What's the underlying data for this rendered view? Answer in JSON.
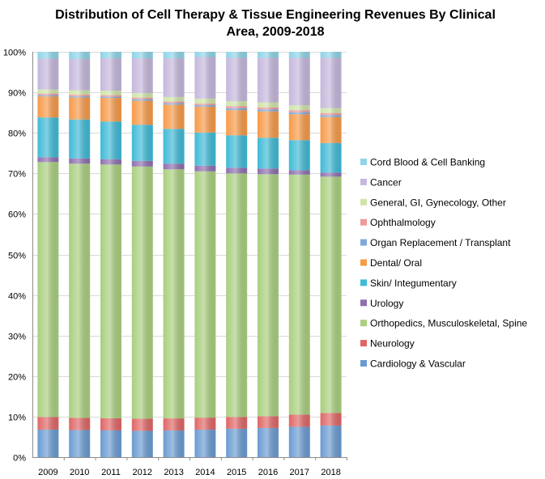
{
  "chart_data": {
    "type": "bar",
    "stacked": "percent",
    "title": "Distribution of Cell Therapy & Tissue Engineering Revenues By Clinical\nArea, 2009-2018",
    "xlabel": "",
    "ylabel": "",
    "ylim": [
      0,
      100
    ],
    "y_ticks": [
      "0%",
      "10%",
      "20%",
      "30%",
      "40%",
      "50%",
      "60%",
      "70%",
      "80%",
      "90%",
      "100%"
    ],
    "grid": true,
    "legend_position": "right",
    "categories": [
      "2009",
      "2010",
      "2011",
      "2012",
      "2013",
      "2014",
      "2015",
      "2016",
      "2017",
      "2018"
    ],
    "series": [
      {
        "name": "Cardiology & Vascular",
        "color": "#6a9bd2",
        "values": [
          6.8,
          6.7,
          6.6,
          6.5,
          6.6,
          6.8,
          7.0,
          7.2,
          7.5,
          7.8
        ]
      },
      {
        "name": "Neurology",
        "color": "#e06666",
        "values": [
          3.1,
          3.0,
          3.0,
          3.0,
          3.0,
          3.0,
          2.9,
          2.9,
          3.0,
          3.1
        ]
      },
      {
        "name": "Orthopedics, Musculoskeletal, Spine",
        "color": "#a9cf7e",
        "values": [
          62.9,
          62.7,
          62.6,
          62.2,
          61.7,
          61.0,
          60.1,
          59.7,
          59.2,
          58.3
        ]
      },
      {
        "name": "Urology",
        "color": "#8e6fb0",
        "values": [
          1.2,
          1.3,
          1.3,
          1.4,
          1.4,
          1.4,
          1.4,
          1.4,
          1.1,
          1.0
        ]
      },
      {
        "name": "Skin/ Integumentary",
        "color": "#3fbad6",
        "values": [
          9.8,
          9.6,
          9.3,
          8.9,
          8.6,
          8.2,
          8.0,
          7.6,
          7.4,
          7.3
        ]
      },
      {
        "name": "Dental/ Oral",
        "color": "#f79a48",
        "values": [
          5.2,
          5.4,
          5.8,
          5.9,
          6.0,
          6.4,
          6.2,
          6.5,
          6.4,
          6.4
        ]
      },
      {
        "name": "Organ Replacement / Transplant",
        "color": "#7fa9d9",
        "values": [
          0.3,
          0.3,
          0.3,
          0.4,
          0.4,
          0.4,
          0.5,
          0.5,
          0.5,
          0.5
        ]
      },
      {
        "name": "Ophthalmology",
        "color": "#ef9a9a",
        "values": [
          0.4,
          0.4,
          0.4,
          0.4,
          0.4,
          0.4,
          0.5,
          0.5,
          0.5,
          0.5
        ]
      },
      {
        "name": "General, GI, Gynecology, Other",
        "color": "#cfe5a8",
        "values": [
          1.0,
          1.1,
          1.1,
          1.1,
          1.1,
          1.2,
          1.2,
          1.2,
          1.2,
          1.2
        ]
      },
      {
        "name": "Cancer",
        "color": "#c5b8dc",
        "values": [
          7.6,
          7.7,
          8.0,
          8.6,
          9.6,
          10.3,
          10.7,
          11.0,
          11.7,
          12.4
        ]
      },
      {
        "name": "Cord Blood & Cell Banking",
        "color": "#8fd4e8",
        "values": [
          1.7,
          1.8,
          1.6,
          1.6,
          1.6,
          1.3,
          1.5,
          1.5,
          1.5,
          1.5
        ]
      }
    ]
  }
}
